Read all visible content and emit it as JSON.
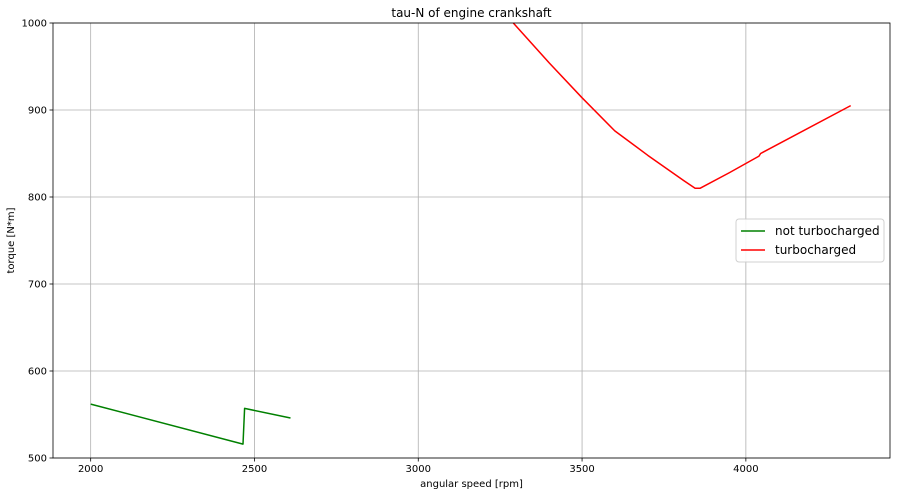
{
  "chart_data": {
    "type": "line",
    "title": "tau-N of engine crankshaft",
    "xlabel": "angular speed [rpm]",
    "ylabel": "torque [N*m]",
    "xlim": [
      1885,
      4440
    ],
    "ylim": [
      500,
      1000
    ],
    "xticks": [
      2000,
      2500,
      3000,
      3500,
      4000
    ],
    "yticks": [
      500,
      600,
      700,
      800,
      900,
      1000
    ],
    "grid": true,
    "legend_position": "center-right",
    "series": [
      {
        "name": "not turbocharged",
        "color": "#008000",
        "x": [
          2000,
          2465,
          2470,
          2610
        ],
        "y": [
          562,
          516,
          557,
          546
        ]
      },
      {
        "name": "turbocharged",
        "color": "#ff0000",
        "x": [
          3290,
          3400,
          3500,
          3600,
          3700,
          3810,
          3845,
          3860,
          3950,
          4040,
          4045,
          4320
        ],
        "y": [
          1000,
          954,
          914,
          876,
          848,
          819,
          810,
          810,
          828,
          847,
          850,
          905
        ]
      }
    ]
  }
}
